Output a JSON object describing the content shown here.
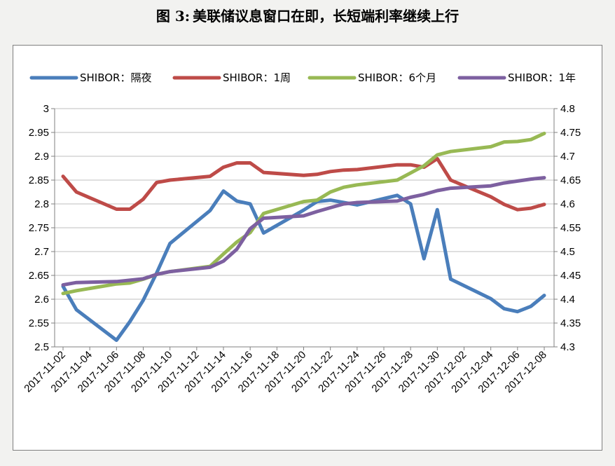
{
  "title": {
    "fig": "图 3:",
    "text": "美联储议息窗口在即，长短端利率继续上行"
  },
  "chart_data": {
    "type": "line",
    "left_axis": {
      "ylim": [
        2.5,
        3.0
      ],
      "ticks": [
        "2.5",
        "2.55",
        "2.6",
        "2.65",
        "2.7",
        "2.75",
        "2.8",
        "2.85",
        "2.9",
        "2.95",
        "3"
      ]
    },
    "right_axis": {
      "ylim": [
        4.3,
        4.8
      ],
      "ticks": [
        "4.3",
        "4.35",
        "4.4",
        "4.45",
        "4.5",
        "4.55",
        "4.6",
        "4.65",
        "4.7",
        "4.75",
        "4.8"
      ]
    },
    "x_tick_labels": [
      "2017-11-02",
      "2017-11-04",
      "2017-11-06",
      "2017-11-08",
      "2017-11-10",
      "2017-11-12",
      "2017-11-14",
      "2017-11-16",
      "2017-11-18",
      "2017-11-20",
      "2017-11-22",
      "2017-11-24",
      "2017-11-26",
      "2017-11-28",
      "2017-11-30",
      "2017-12-02",
      "2017-12-04",
      "2017-12-06",
      "2017-12-08"
    ],
    "x": [
      "2017-11-02",
      "2017-11-03",
      "2017-11-06",
      "2017-11-07",
      "2017-11-08",
      "2017-11-09",
      "2017-11-10",
      "2017-11-13",
      "2017-11-14",
      "2017-11-15",
      "2017-11-16",
      "2017-11-17",
      "2017-11-20",
      "2017-11-21",
      "2017-11-22",
      "2017-11-23",
      "2017-11-24",
      "2017-11-27",
      "2017-11-28",
      "2017-11-29",
      "2017-11-30",
      "2017-12-01",
      "2017-12-04",
      "2017-12-05",
      "2017-12-06",
      "2017-12-07",
      "2017-12-08"
    ],
    "legend_position": "top",
    "grid": true,
    "series": [
      {
        "name": "SHIBOR：隔夜",
        "axis": "left",
        "color": "#4a7ebb",
        "values": [
          2.627,
          2.578,
          2.514,
          2.553,
          2.598,
          2.655,
          2.717,
          2.786,
          2.827,
          2.806,
          2.8,
          2.739,
          2.787,
          2.805,
          2.808,
          2.803,
          2.798,
          2.818,
          2.8,
          2.685,
          2.788,
          2.642,
          2.601,
          2.58,
          2.574,
          2.585,
          2.608
        ]
      },
      {
        "name": "SHIBOR：1周",
        "axis": "left",
        "color": "#be4b48",
        "values": [
          2.858,
          2.825,
          2.789,
          2.789,
          2.81,
          2.845,
          2.85,
          2.858,
          2.877,
          2.886,
          2.886,
          2.866,
          2.86,
          2.862,
          2.868,
          2.871,
          2.872,
          2.882,
          2.882,
          2.877,
          2.895,
          2.85,
          2.815,
          2.799,
          2.788,
          2.791,
          2.799
        ]
      },
      {
        "name": "SHIBOR：6个月",
        "axis": "right",
        "color": "#98b954",
        "values": [
          4.412,
          4.418,
          4.432,
          4.434,
          4.442,
          4.452,
          4.458,
          4.469,
          4.495,
          4.52,
          4.54,
          4.58,
          4.605,
          4.608,
          4.625,
          4.635,
          4.64,
          4.65,
          4.665,
          4.68,
          4.703,
          4.71,
          4.72,
          4.73,
          4.731,
          4.735,
          4.748
        ]
      },
      {
        "name": "SHIBOR：1年",
        "axis": "right",
        "color": "#7d60a0",
        "values": [
          4.43,
          4.435,
          4.437,
          4.44,
          4.443,
          4.452,
          4.458,
          4.467,
          4.48,
          4.505,
          4.548,
          4.57,
          4.575,
          4.584,
          4.592,
          4.6,
          4.603,
          4.606,
          4.614,
          4.62,
          4.628,
          4.633,
          4.638,
          4.644,
          4.648,
          4.652,
          4.655
        ]
      }
    ]
  }
}
